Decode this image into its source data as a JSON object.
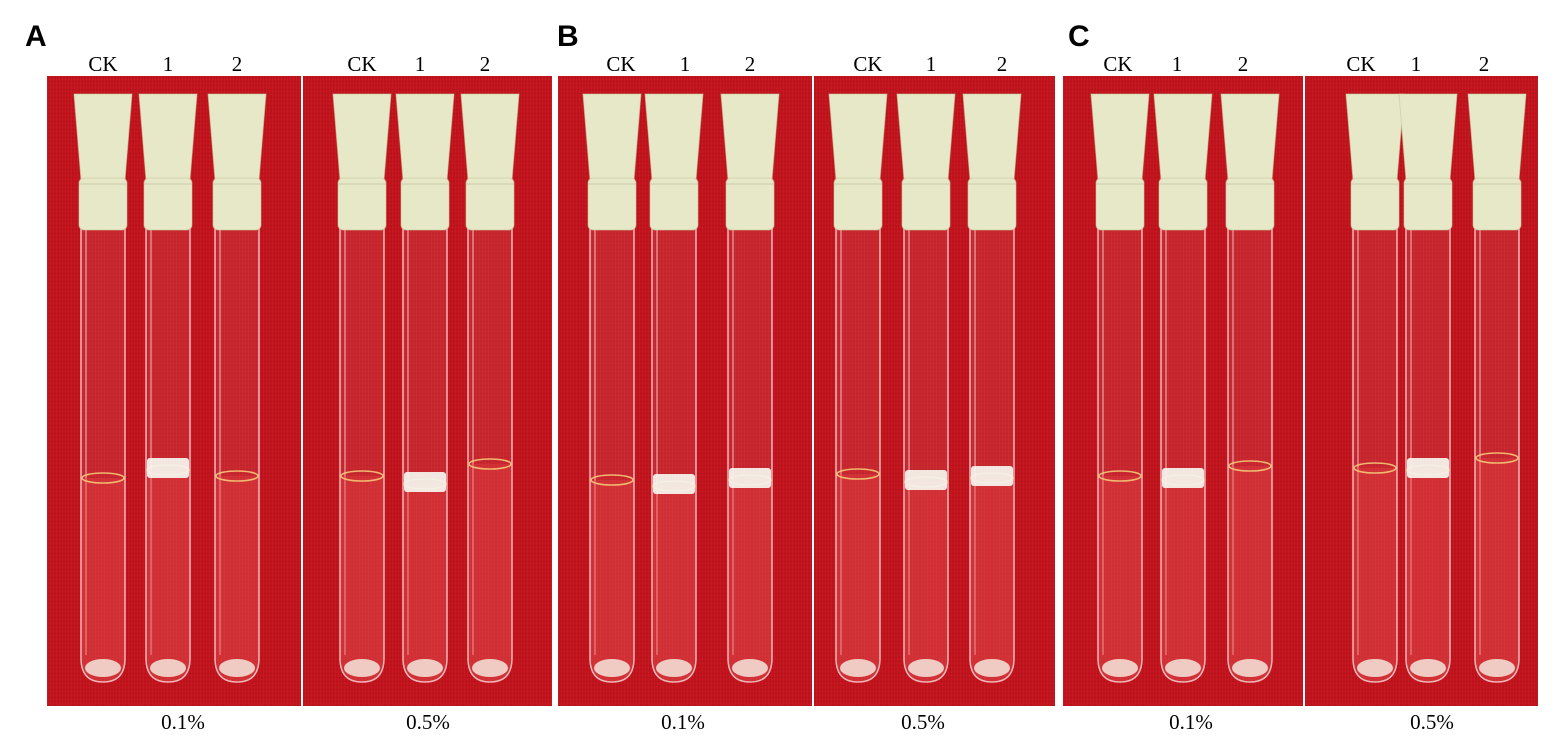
{
  "panels": [
    {
      "letter": "A",
      "groups": [
        {
          "concentration": "0.1%",
          "tubes": [
            "CK",
            "1",
            "2"
          ]
        },
        {
          "concentration": "0.5%",
          "tubes": [
            "CK",
            "1",
            "2"
          ]
        }
      ]
    },
    {
      "letter": "B",
      "groups": [
        {
          "concentration": "0.1%",
          "tubes": [
            "CK",
            "1",
            "2"
          ]
        },
        {
          "concentration": "0.5%",
          "tubes": [
            "CK",
            "1",
            "2"
          ]
        }
      ]
    },
    {
      "letter": "C",
      "groups": [
        {
          "concentration": "0.1%",
          "tubes": [
            "CK",
            "1",
            "2"
          ]
        },
        {
          "concentration": "0.5%",
          "tubes": [
            "CK",
            "1",
            "2"
          ]
        }
      ]
    }
  ],
  "colors": {
    "background": "#c2121b",
    "stopper": "#e6e8c8",
    "layer": "#f4f1ea"
  }
}
